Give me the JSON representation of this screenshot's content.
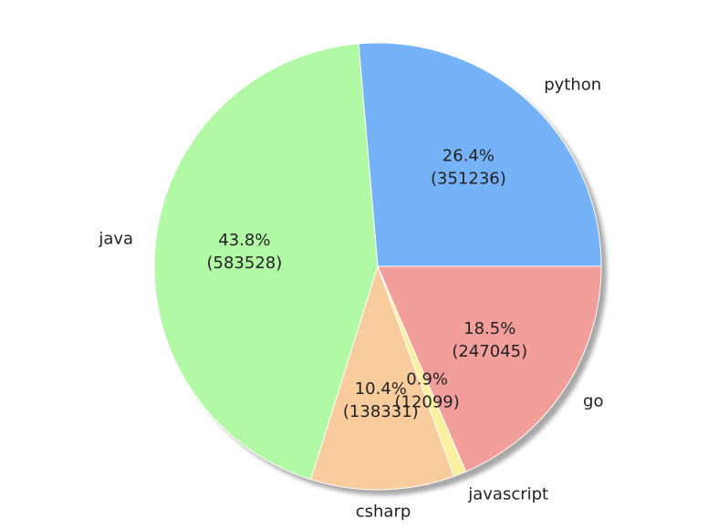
{
  "chart_data": {
    "type": "pie",
    "title": "",
    "shadow": true,
    "start_angle_deg": 0,
    "direction": "counterclockwise",
    "slices": [
      {
        "label": "python",
        "value": 351236,
        "percent_label": "26.4%",
        "value_label": "(351236)",
        "color": "#75b2f8"
      },
      {
        "label": "java",
        "value": 583528,
        "percent_label": "43.8%",
        "value_label": "(583528)",
        "color": "#b1f9a5"
      },
      {
        "label": "csharp",
        "value": 138331,
        "percent_label": "10.4%",
        "value_label": "(138331)",
        "color": "#f8cc9c"
      },
      {
        "label": "javascript",
        "value": 12099,
        "percent_label": "0.9%",
        "value_label": "(12099)",
        "color": "#fbf0a0"
      },
      {
        "label": "go",
        "value": 247045,
        "percent_label": "18.5%",
        "value_label": "(247045)",
        "color": "#f29f9b"
      }
    ]
  }
}
